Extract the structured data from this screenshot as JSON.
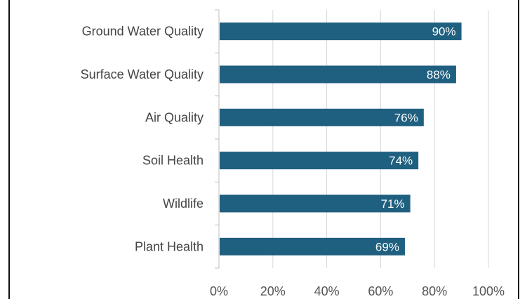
{
  "chart_data": {
    "type": "bar",
    "orientation": "horizontal",
    "title": "",
    "xlabel": "",
    "ylabel": "",
    "categories": [
      "Ground Water Quality",
      "Surface Water Quality",
      "Air Quality",
      "Soil Health",
      "Wildlife",
      "Plant Health"
    ],
    "values": [
      90,
      88,
      76,
      74,
      71,
      69
    ],
    "data_labels": [
      "90%",
      "88%",
      "76%",
      "74%",
      "71%",
      "69%"
    ],
    "xlim": [
      0,
      100
    ],
    "xticks": [
      0,
      20,
      40,
      60,
      80,
      100
    ],
    "xtick_labels": [
      "0%",
      "20%",
      "40%",
      "60%",
      "80%",
      "100%"
    ],
    "grid": "vertical",
    "legend": "none",
    "colors": {
      "bar": "#1f5f7f",
      "grid": "#d9d9d9",
      "axis": "#bfbfbf",
      "label_text": "#444444",
      "data_label_text": "#ffffff"
    }
  }
}
